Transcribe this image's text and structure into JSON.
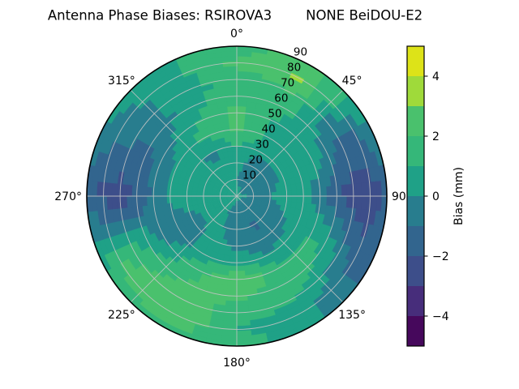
{
  "chart_data": {
    "type": "heatmap",
    "projection": "polar",
    "title": "Antenna Phase Biases: RSIROVA3        NONE BeiDOU-E2",
    "grid_on": true,
    "theta_zero_location": "top",
    "theta_direction": "clockwise",
    "theta_labels": [
      {
        "label": "0°",
        "deg": 0
      },
      {
        "label": "45°",
        "deg": 45
      },
      {
        "label": "90",
        "deg": 90
      },
      {
        "label": "135°",
        "deg": 135
      },
      {
        "label": "180°",
        "deg": 180
      },
      {
        "label": "225°",
        "deg": 225
      },
      {
        "label": "270°",
        "deg": 270
      },
      {
        "label": "315°",
        "deg": 315
      }
    ],
    "r_ticks": [
      "10",
      "20",
      "30",
      "40",
      "50",
      "60",
      "70",
      "80",
      "90"
    ],
    "r_max": 90,
    "levels": [
      -5,
      -4,
      -3,
      -2,
      -1,
      0,
      1,
      2,
      3,
      4,
      5
    ],
    "level_colors": [
      "#46085c",
      "#472d7b",
      "#3d4e8a",
      "#32658e",
      "#287d8e",
      "#1fa187",
      "#35b779",
      "#4ac16d",
      "#9fda3a",
      "#dde318"
    ],
    "colorbar": {
      "label": "Bias (mm)",
      "ticks": [
        {
          "label": "4",
          "value": 4
        },
        {
          "label": "2",
          "value": 2
        },
        {
          "label": "0",
          "value": 0
        },
        {
          "label": "−2",
          "value": -2
        },
        {
          "label": "−4",
          "value": -4
        }
      ],
      "vmin": -5,
      "vmax": 5
    },
    "grid": {
      "azimuth_deg": [
        0,
        30,
        60,
        90,
        120,
        150,
        180,
        210,
        240,
        270,
        300,
        330
      ],
      "zenith_deg": [
        0,
        10,
        20,
        30,
        40,
        50,
        60,
        70,
        80,
        90
      ],
      "bias_mm": [
        [
          0.3,
          0.0,
          0.4,
          1.0,
          2.2,
          2.4,
          1.6,
          1.5,
          2.2,
          1.6
        ],
        [
          0.3,
          -0.4,
          -0.6,
          0.2,
          0.8,
          0.8,
          1.2,
          2.0,
          3.2,
          2.4
        ],
        [
          0.3,
          -0.5,
          -0.6,
          0.3,
          1.0,
          0.8,
          -0.3,
          -1.2,
          -0.8,
          0.3
        ],
        [
          0.3,
          -0.3,
          0.0,
          0.4,
          0.3,
          -0.8,
          -1.8,
          -2.6,
          -2.7,
          -1.8
        ],
        [
          0.3,
          -0.5,
          -0.7,
          -0.2,
          0.6,
          1.2,
          0.8,
          -0.4,
          -1.5,
          -1.2
        ],
        [
          0.3,
          -0.8,
          -1.1,
          -0.9,
          0.2,
          1.4,
          1.6,
          1.0,
          0.4,
          0.4
        ],
        [
          0.3,
          -0.6,
          -0.6,
          -0.2,
          0.8,
          3.1,
          2.2,
          1.4,
          1.0,
          1.5
        ],
        [
          0.3,
          0.0,
          0.2,
          0.4,
          0.4,
          1.6,
          2.2,
          2.8,
          3.1,
          1.8
        ],
        [
          0.3,
          0.3,
          0.2,
          -0.5,
          -0.8,
          -0.2,
          1.0,
          1.8,
          2.0,
          1.2
        ],
        [
          0.3,
          0.5,
          0.6,
          0.6,
          0.3,
          -0.8,
          -2.0,
          -2.6,
          -2.4,
          -1.8
        ],
        [
          0.3,
          0.4,
          0.6,
          0.3,
          0.3,
          -0.6,
          -1.0,
          -0.8,
          -0.5,
          0.0
        ],
        [
          0.3,
          0.3,
          0.0,
          -0.2,
          1.2,
          1.0,
          0.4,
          0.5,
          0.6,
          0.8
        ]
      ]
    },
    "style": {
      "grid_line_color": "#c3c3c3",
      "outline_color": "#000000",
      "background_color": "#ffffff"
    }
  }
}
